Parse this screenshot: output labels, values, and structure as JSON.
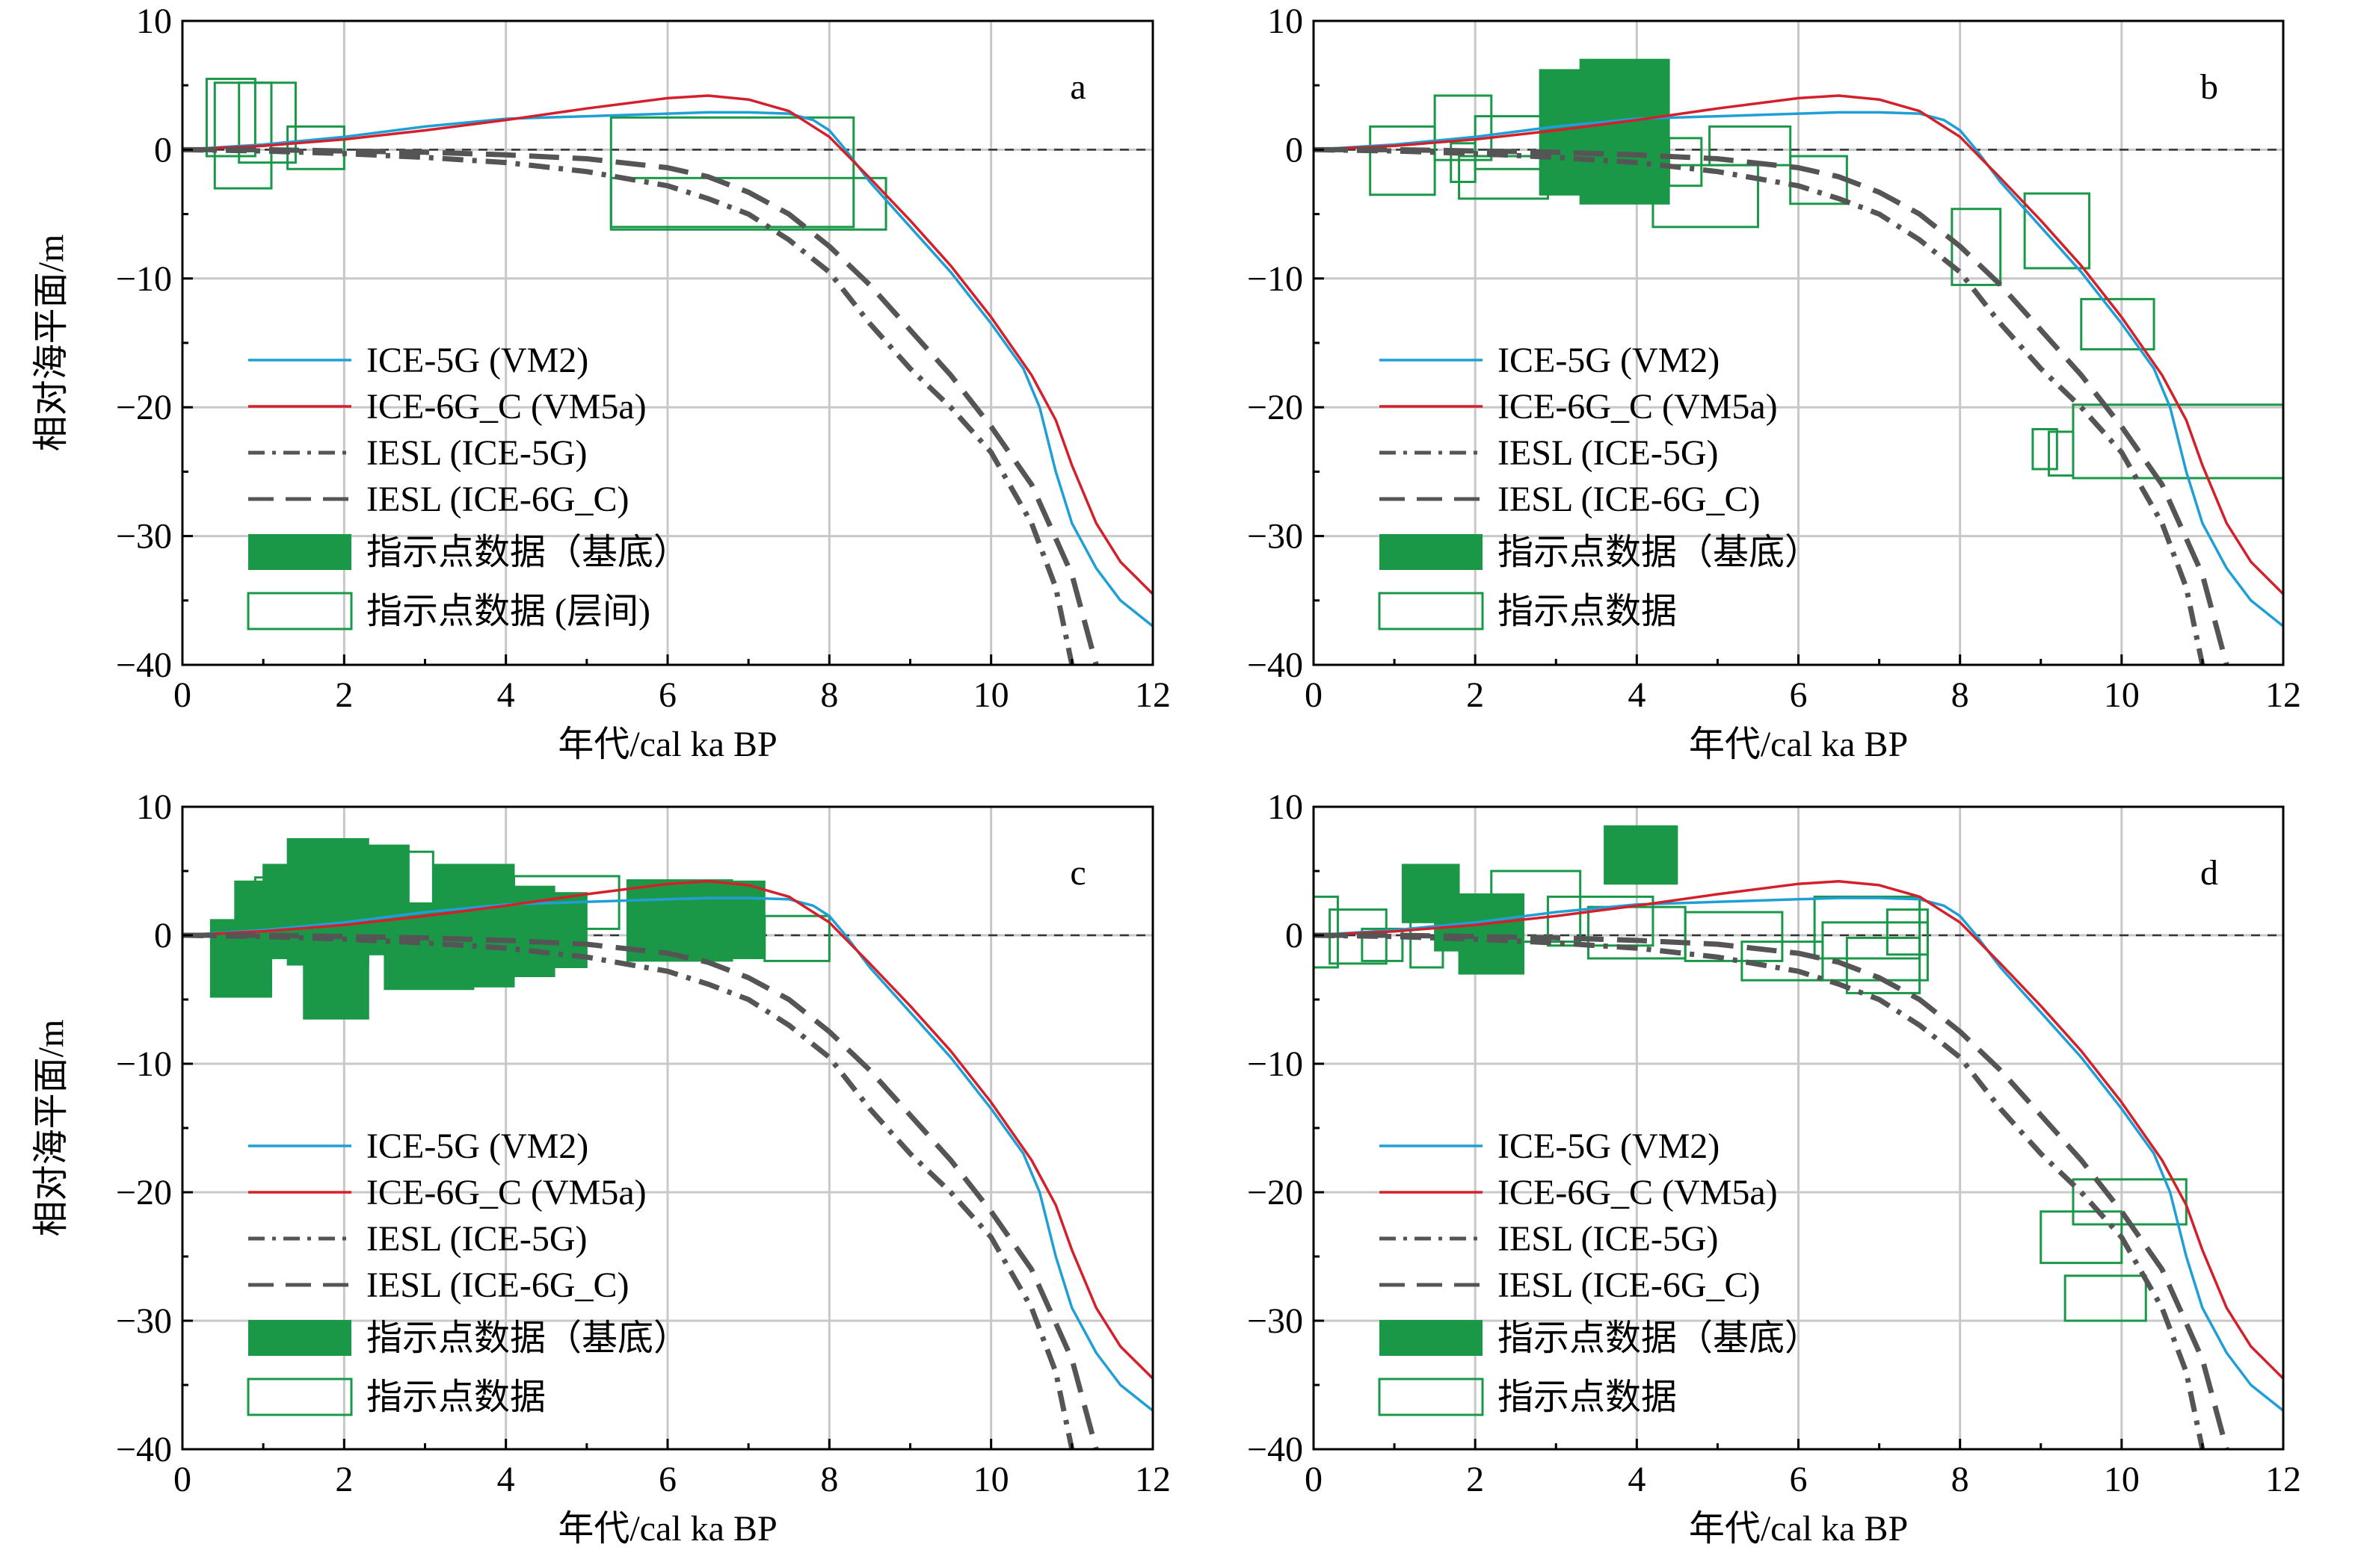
{
  "colors": {
    "ice5g": "#1f9fd6",
    "ice6g": "#d4202a",
    "iesl": "#555555",
    "box": "#1a9848",
    "grid": "#c8c8c8"
  },
  "chart_data": [
    {
      "type": "line",
      "panel": "a",
      "xlabel": "年代/cal ka BP",
      "ylabel": "相对海平面/m",
      "xlim": [
        0,
        12
      ],
      "ylim": [
        -40,
        10
      ],
      "xticks": [
        0,
        2,
        4,
        6,
        8,
        10,
        12
      ],
      "yticks": [
        10,
        0,
        -10,
        -20,
        -30,
        -40
      ],
      "grid": true,
      "legend_position": "left",
      "legend": [
        "ICE-5G (VM2)",
        "ICE-6G_C (VM5a)",
        "IESL (ICE-5G)",
        "IESL (ICE-6G_C)",
        "指示点数据（基底）",
        "指示点数据 (层间)"
      ],
      "boxes_filled": [],
      "boxes_open": [
        [
          0.3,
          0.9,
          -0.5,
          5.5
        ],
        [
          0.4,
          1.1,
          -3,
          5.2
        ],
        [
          0.7,
          1.4,
          -1,
          5.2
        ],
        [
          1.3,
          2.0,
          -1.5,
          1.8
        ],
        [
          5.3,
          8.3,
          -6,
          2.5
        ],
        [
          5.3,
          8.7,
          -6.2,
          -2.2
        ]
      ]
    },
    {
      "type": "line",
      "panel": "b",
      "xlabel": "年代/cal ka BP",
      "ylabel": "",
      "xlim": [
        0,
        12
      ],
      "ylim": [
        -40,
        10
      ],
      "xticks": [
        0,
        2,
        4,
        6,
        8,
        10,
        12
      ],
      "yticks": [
        10,
        0,
        -10,
        -20,
        -30,
        -40
      ],
      "grid": true,
      "legend_position": "left",
      "legend": [
        "ICE-5G (VM2)",
        "ICE-6G_C (VM5a)",
        "IESL (ICE-5G)",
        "IESL (ICE-6G_C)",
        "指示点数据（基底）",
        "指示点数据"
      ],
      "boxes_filled": [
        [
          2.8,
          3.9,
          -3.5,
          6.2
        ],
        [
          3.3,
          4.4,
          -4.2,
          7.0
        ]
      ],
      "boxes_open": [
        [
          0.7,
          1.5,
          -3.5,
          1.8
        ],
        [
          1.5,
          2.2,
          -0.8,
          4.2
        ],
        [
          1.7,
          2.0,
          -2.5,
          0.5
        ],
        [
          1.8,
          2.9,
          -3.8,
          -0.5
        ],
        [
          2.0,
          2.9,
          -1.5,
          2.6
        ],
        [
          4.4,
          4.8,
          -2.8,
          0.9
        ],
        [
          4.2,
          5.5,
          -6,
          -1.2
        ],
        [
          4.9,
          5.9,
          -1.2,
          1.8
        ],
        [
          5.9,
          6.6,
          -4.2,
          -0.5
        ],
        [
          7.9,
          8.5,
          -10.5,
          -4.6
        ],
        [
          8.8,
          9.6,
          -9.2,
          -3.4
        ],
        [
          9.5,
          10.4,
          -15.5,
          -11.6
        ],
        [
          8.9,
          9.2,
          -24.8,
          -21.7
        ],
        [
          9.1,
          9.4,
          -25.3,
          -21.9
        ],
        [
          9.4,
          12.0,
          -25.5,
          -19.8
        ]
      ]
    },
    {
      "type": "line",
      "panel": "c",
      "xlabel": "年代/cal ka BP",
      "ylabel": "相对海平面/m",
      "xlim": [
        0,
        12
      ],
      "ylim": [
        -40,
        10
      ],
      "xticks": [
        0,
        2,
        4,
        6,
        8,
        10,
        12
      ],
      "yticks": [
        10,
        0,
        -10,
        -20,
        -30,
        -40
      ],
      "grid": true,
      "legend_position": "left",
      "legend": [
        "ICE-5G (VM2)",
        "ICE-6G_C (VM5a)",
        "IESL (ICE-5G)",
        "IESL (ICE-6G_C)",
        "指示点数据（基底）",
        "指示点数据"
      ],
      "boxes_filled": [
        [
          0.35,
          1.1,
          -4.8,
          1.2
        ],
        [
          0.65,
          1.3,
          -1.8,
          4.2
        ],
        [
          1.0,
          1.7,
          -0.8,
          5.5
        ],
        [
          1.3,
          2.3,
          -2.3,
          7.5
        ],
        [
          1.5,
          2.3,
          -6.5,
          3.0
        ],
        [
          2.0,
          2.8,
          -1.5,
          7.0
        ],
        [
          2.5,
          3.6,
          -4.2,
          2.5
        ],
        [
          3.1,
          4.1,
          -4.0,
          5.5
        ],
        [
          3.6,
          4.6,
          -3.2,
          3.8
        ],
        [
          4.0,
          5.0,
          -2.5,
          3.3
        ],
        [
          5.5,
          6.8,
          -2.0,
          4.3
        ],
        [
          6.3,
          7.2,
          -1.8,
          4.2
        ]
      ],
      "boxes_open": [
        [
          0.9,
          1.6,
          0,
          4.5
        ],
        [
          2.6,
          3.1,
          1,
          6.5
        ],
        [
          4.1,
          5.4,
          0.5,
          4.6
        ],
        [
          7.2,
          8.0,
          -2,
          1.5
        ]
      ]
    },
    {
      "type": "line",
      "panel": "d",
      "xlabel": "年代/cal ka BP",
      "ylabel": "",
      "xlim": [
        0,
        12
      ],
      "ylim": [
        -40,
        10
      ],
      "xticks": [
        0,
        2,
        4,
        6,
        8,
        10,
        12
      ],
      "yticks": [
        10,
        0,
        -10,
        -20,
        -30,
        -40
      ],
      "grid": true,
      "legend_position": "left",
      "legend": [
        "ICE-5G (VM2)",
        "ICE-6G_C (VM5a)",
        "IESL (ICE-5G)",
        "IESL (ICE-6G_C)",
        "指示点数据（基底）",
        "指示点数据"
      ],
      "boxes_filled": [
        [
          1.1,
          1.8,
          1,
          5.5
        ],
        [
          1.5,
          2.0,
          -1.2,
          3.0
        ],
        [
          1.8,
          2.6,
          -3,
          3.2
        ],
        [
          3.6,
          4.5,
          4,
          8.5
        ]
      ],
      "boxes_open": [
        [
          0,
          0.3,
          -2.5,
          3
        ],
        [
          0.2,
          0.9,
          -2.2,
          2
        ],
        [
          0.6,
          1.1,
          -2,
          0.5
        ],
        [
          1.2,
          1.6,
          -2.5,
          1.5
        ],
        [
          2.2,
          3.3,
          -0.5,
          5
        ],
        [
          2.9,
          4.2,
          -0.8,
          3
        ],
        [
          3.4,
          4.6,
          -1.8,
          2.2
        ],
        [
          4.6,
          5.8,
          -2,
          1.8
        ],
        [
          5.3,
          6.3,
          -3.5,
          -0.5
        ],
        [
          6.2,
          7.5,
          -1.8,
          3
        ],
        [
          6.3,
          7.6,
          -3.5,
          1
        ],
        [
          6.6,
          7.5,
          -4.5,
          -0.2
        ],
        [
          7.1,
          7.6,
          -1.5,
          2
        ],
        [
          9.4,
          10.8,
          -22.5,
          -19
        ],
        [
          9.0,
          10.0,
          -25.5,
          -21.5
        ],
        [
          9.3,
          10.3,
          -30,
          -26.5
        ]
      ]
    }
  ],
  "shared_curves": {
    "ice5g_vm2": {
      "name": "ICE-5G (VM2)",
      "x": [
        0,
        1,
        2,
        3,
        4,
        5,
        6,
        6.5,
        7,
        7.5,
        7.8,
        8.0,
        8.2,
        8.5,
        9.0,
        9.5,
        10.0,
        10.4,
        10.6,
        10.8,
        11.0,
        11.3,
        11.6,
        12.0
      ],
      "y": [
        0,
        0.4,
        1.0,
        1.8,
        2.4,
        2.6,
        2.8,
        2.9,
        2.9,
        2.8,
        2.3,
        1.5,
        0,
        -2.5,
        -6,
        -9.5,
        -13.5,
        -17,
        -20,
        -25,
        -29,
        -32.5,
        -35,
        -37
      ]
    },
    "ice6g_c_vm5a": {
      "name": "ICE-6G_C (VM5a)",
      "x": [
        0,
        1,
        2,
        3,
        4,
        5,
        6,
        6.5,
        7,
        7.5,
        8.0,
        8.5,
        9.0,
        9.5,
        10.0,
        10.5,
        10.8,
        11.0,
        11.3,
        11.6,
        12.0
      ],
      "y": [
        0,
        0.3,
        0.8,
        1.5,
        2.3,
        3.2,
        4.0,
        4.2,
        3.9,
        3.0,
        1.0,
        -2.2,
        -5.5,
        -9,
        -13,
        -17.5,
        -21,
        -24.5,
        -29,
        -32,
        -34.5
      ]
    },
    "iesl_ice5g": {
      "name": "IESL (ICE-5G)",
      "x": [
        0,
        1,
        2,
        3,
        4,
        5,
        6,
        6.5,
        7,
        7.5,
        8,
        8.5,
        9,
        9.5,
        10,
        10.5,
        10.8,
        11.0
      ],
      "y": [
        0,
        -0.1,
        -0.3,
        -0.6,
        -1.0,
        -1.7,
        -2.8,
        -3.8,
        -5,
        -7,
        -9.5,
        -13.5,
        -17,
        -20,
        -23.5,
        -29,
        -34,
        -40
      ]
    },
    "iesl_ice6g_c": {
      "name": "IESL (ICE-6G_C)",
      "x": [
        0,
        1,
        2,
        3,
        4,
        5,
        6,
        6.5,
        7,
        7.5,
        8,
        8.5,
        9,
        9.5,
        10,
        10.5,
        11,
        11.3
      ],
      "y": [
        0,
        0,
        -0.1,
        -0.2,
        -0.4,
        -0.7,
        -1.4,
        -2.1,
        -3.3,
        -5,
        -7.5,
        -10.5,
        -14,
        -17.5,
        -21.5,
        -26,
        -33,
        -40
      ]
    }
  }
}
